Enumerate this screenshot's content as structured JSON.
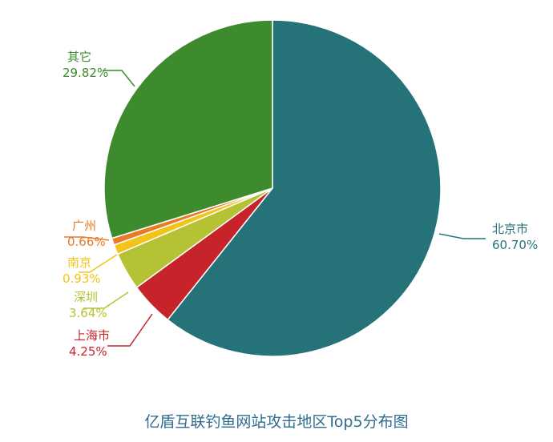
{
  "chart_data": {
    "type": "pie",
    "title": "亿盾互联钓鱼网站攻击地区Top5分布图",
    "slices": [
      {
        "label": "北京市",
        "pct": "60.70%",
        "value": 60.7,
        "color": "#267279"
      },
      {
        "label": "上海市",
        "pct": "4.25%",
        "value": 4.25,
        "color": "#c7232a"
      },
      {
        "label": "深圳",
        "pct": "3.64%",
        "value": 3.64,
        "color": "#b5c234"
      },
      {
        "label": "南京",
        "pct": "0.93%",
        "value": 0.93,
        "color": "#f2c318"
      },
      {
        "label": "广州",
        "pct": "0.66%",
        "value": 0.66,
        "color": "#ea7a25"
      },
      {
        "label": "其它",
        "pct": "29.82%",
        "value": 29.82,
        "color": "#3d8b2c"
      }
    ],
    "legend": "none"
  }
}
